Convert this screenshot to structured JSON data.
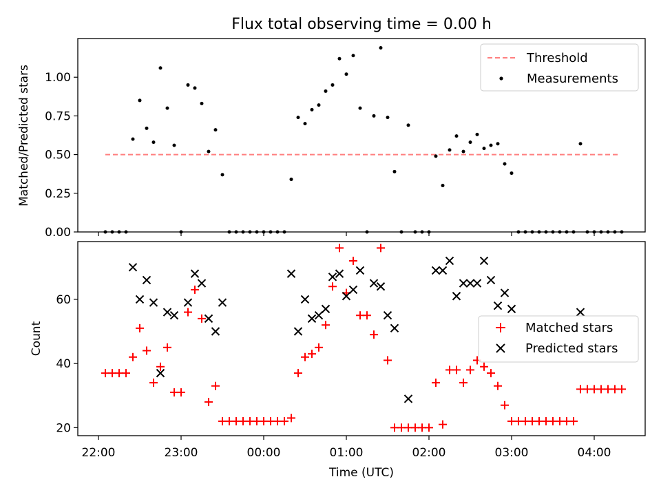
{
  "chart_data": [
    {
      "type": "scatter",
      "title": "Flux total observing time = 0.00 h",
      "xlabel": "",
      "ylabel": "Matched/Predicted stars",
      "ylim": [
        0,
        1.25
      ],
      "xlim": [
        "21:45",
        "04:37"
      ],
      "yticks": [
        "0.00",
        "0.25",
        "0.50",
        "0.75",
        "1.00"
      ],
      "legend": "top-right",
      "threshold": {
        "name": "Threshold",
        "value": 0.5,
        "x_range": [
          "22:05",
          "04:18"
        ],
        "color": "#ff7f7f"
      },
      "series": [
        {
          "name": "Measurements",
          "color": "#000000",
          "points": [
            [
              "22:05",
              0
            ],
            [
              "22:10",
              0
            ],
            [
              "22:15",
              0
            ],
            [
              "22:20",
              0
            ],
            [
              "22:25",
              0.6
            ],
            [
              "22:30",
              0.85
            ],
            [
              "22:35",
              0.67
            ],
            [
              "22:40",
              0.58
            ],
            [
              "22:45",
              1.06
            ],
            [
              "22:50",
              0.8
            ],
            [
              "22:55",
              0.56
            ],
            [
              "23:00",
              0
            ],
            [
              "23:05",
              0.95
            ],
            [
              "23:10",
              0.93
            ],
            [
              "23:15",
              0.83
            ],
            [
              "23:20",
              0.52
            ],
            [
              "23:25",
              0.66
            ],
            [
              "23:30",
              0.37
            ],
            [
              "23:35",
              0
            ],
            [
              "23:40",
              0
            ],
            [
              "23:45",
              0
            ],
            [
              "23:50",
              0
            ],
            [
              "23:55",
              0
            ],
            [
              "00:00",
              0
            ],
            [
              "00:05",
              0
            ],
            [
              "00:10",
              0
            ],
            [
              "00:15",
              0
            ],
            [
              "00:20",
              0.34
            ],
            [
              "00:25",
              0.74
            ],
            [
              "00:30",
              0.7
            ],
            [
              "00:35",
              0.79
            ],
            [
              "00:40",
              0.82
            ],
            [
              "00:45",
              0.91
            ],
            [
              "00:50",
              0.95
            ],
            [
              "00:55",
              1.12
            ],
            [
              "01:00",
              1.02
            ],
            [
              "01:05",
              1.14
            ],
            [
              "01:10",
              0.8
            ],
            [
              "01:15",
              0
            ],
            [
              "01:20",
              0.75
            ],
            [
              "01:25",
              1.19
            ],
            [
              "01:30",
              0.74
            ],
            [
              "01:35",
              0.39
            ],
            [
              "01:40",
              0
            ],
            [
              "01:45",
              0.69
            ],
            [
              "01:50",
              0
            ],
            [
              "01:55",
              0
            ],
            [
              "02:00",
              0
            ],
            [
              "02:05",
              0.49
            ],
            [
              "02:10",
              0.3
            ],
            [
              "02:15",
              0.53
            ],
            [
              "02:20",
              0.62
            ],
            [
              "02:25",
              0.52
            ],
            [
              "02:30",
              0.58
            ],
            [
              "02:35",
              0.63
            ],
            [
              "02:40",
              0.54
            ],
            [
              "02:45",
              0.56
            ],
            [
              "02:50",
              0.57
            ],
            [
              "02:55",
              0.44
            ],
            [
              "03:00",
              0.38
            ],
            [
              "03:05",
              0
            ],
            [
              "03:10",
              0
            ],
            [
              "03:15",
              0
            ],
            [
              "03:20",
              0
            ],
            [
              "03:25",
              0
            ],
            [
              "03:30",
              0
            ],
            [
              "03:35",
              0
            ],
            [
              "03:40",
              0
            ],
            [
              "03:45",
              0
            ],
            [
              "03:50",
              0.57
            ],
            [
              "03:55",
              0
            ],
            [
              "04:00",
              0
            ],
            [
              "04:05",
              0
            ],
            [
              "04:10",
              0
            ],
            [
              "04:15",
              0
            ],
            [
              "04:20",
              0
            ]
          ]
        }
      ]
    },
    {
      "type": "scatter",
      "title": "",
      "xlabel": "Time (UTC)",
      "ylabel": "Count",
      "ylim": [
        17.5,
        78
      ],
      "xlim": [
        "21:45",
        "04:37"
      ],
      "yticks": [
        "20",
        "40",
        "60"
      ],
      "xticks": [
        "22:00",
        "23:00",
        "00:00",
        "01:00",
        "02:00",
        "03:00",
        "04:00"
      ],
      "legend": "center-right",
      "series": [
        {
          "name": "Matched stars",
          "color": "#ff0000",
          "marker": "plus",
          "points": [
            [
              "22:05",
              37
            ],
            [
              "22:10",
              37
            ],
            [
              "22:15",
              37
            ],
            [
              "22:20",
              37
            ],
            [
              "22:25",
              42
            ],
            [
              "22:30",
              51
            ],
            [
              "22:35",
              44
            ],
            [
              "22:40",
              34
            ],
            [
              "22:45",
              39
            ],
            [
              "22:50",
              45
            ],
            [
              "22:55",
              31
            ],
            [
              "23:00",
              31
            ],
            [
              "23:05",
              56
            ],
            [
              "23:10",
              63
            ],
            [
              "23:15",
              54
            ],
            [
              "23:20",
              28
            ],
            [
              "23:25",
              33
            ],
            [
              "23:30",
              22
            ],
            [
              "23:35",
              22
            ],
            [
              "23:40",
              22
            ],
            [
              "23:45",
              22
            ],
            [
              "23:50",
              22
            ],
            [
              "23:55",
              22
            ],
            [
              "00:00",
              22
            ],
            [
              "00:05",
              22
            ],
            [
              "00:10",
              22
            ],
            [
              "00:15",
              22
            ],
            [
              "00:20",
              23
            ],
            [
              "00:25",
              37
            ],
            [
              "00:30",
              42
            ],
            [
              "00:35",
              43
            ],
            [
              "00:40",
              45
            ],
            [
              "00:45",
              52
            ],
            [
              "00:50",
              64
            ],
            [
              "00:55",
              76
            ],
            [
              "01:00",
              62
            ],
            [
              "01:05",
              72
            ],
            [
              "01:10",
              55
            ],
            [
              "01:15",
              55
            ],
            [
              "01:20",
              49
            ],
            [
              "01:25",
              76
            ],
            [
              "01:30",
              41
            ],
            [
              "01:35",
              20
            ],
            [
              "01:40",
              20
            ],
            [
              "01:45",
              20
            ],
            [
              "01:50",
              20
            ],
            [
              "01:55",
              20
            ],
            [
              "02:00",
              20
            ],
            [
              "02:05",
              34
            ],
            [
              "02:10",
              21
            ],
            [
              "02:15",
              38
            ],
            [
              "02:20",
              38
            ],
            [
              "02:25",
              34
            ],
            [
              "02:30",
              38
            ],
            [
              "02:35",
              41
            ],
            [
              "02:40",
              39
            ],
            [
              "02:45",
              37
            ],
            [
              "02:50",
              33
            ],
            [
              "02:55",
              27
            ],
            [
              "03:00",
              22
            ],
            [
              "03:05",
              22
            ],
            [
              "03:10",
              22
            ],
            [
              "03:15",
              22
            ],
            [
              "03:20",
              22
            ],
            [
              "03:25",
              22
            ],
            [
              "03:30",
              22
            ],
            [
              "03:35",
              22
            ],
            [
              "03:40",
              22
            ],
            [
              "03:45",
              22
            ],
            [
              "03:50",
              32
            ],
            [
              "03:55",
              32
            ],
            [
              "04:00",
              32
            ],
            [
              "04:05",
              32
            ],
            [
              "04:10",
              32
            ],
            [
              "04:15",
              32
            ],
            [
              "04:20",
              32
            ]
          ]
        },
        {
          "name": "Predicted stars",
          "color": "#000000",
          "marker": "x",
          "points": [
            [
              "22:25",
              70
            ],
            [
              "22:30",
              60
            ],
            [
              "22:35",
              66
            ],
            [
              "22:40",
              59
            ],
            [
              "22:45",
              37
            ],
            [
              "22:50",
              56
            ],
            [
              "22:55",
              55
            ],
            [
              "23:05",
              59
            ],
            [
              "23:10",
              68
            ],
            [
              "23:15",
              65
            ],
            [
              "23:20",
              54
            ],
            [
              "23:25",
              50
            ],
            [
              "23:30",
              59
            ],
            [
              "00:20",
              68
            ],
            [
              "00:25",
              50
            ],
            [
              "00:30",
              60
            ],
            [
              "00:35",
              54
            ],
            [
              "00:40",
              55
            ],
            [
              "00:45",
              57
            ],
            [
              "00:50",
              67
            ],
            [
              "00:55",
              68
            ],
            [
              "01:00",
              61
            ],
            [
              "01:05",
              63
            ],
            [
              "01:10",
              69
            ],
            [
              "01:20",
              65
            ],
            [
              "01:25",
              64
            ],
            [
              "01:30",
              55
            ],
            [
              "01:35",
              51
            ],
            [
              "01:45",
              29
            ],
            [
              "02:05",
              69
            ],
            [
              "02:10",
              69
            ],
            [
              "02:15",
              72
            ],
            [
              "02:20",
              61
            ],
            [
              "02:25",
              65
            ],
            [
              "02:30",
              65
            ],
            [
              "02:35",
              65
            ],
            [
              "02:40",
              72
            ],
            [
              "02:45",
              66
            ],
            [
              "02:50",
              58
            ],
            [
              "02:55",
              62
            ],
            [
              "03:00",
              57
            ],
            [
              "03:50",
              56
            ]
          ]
        }
      ]
    }
  ]
}
